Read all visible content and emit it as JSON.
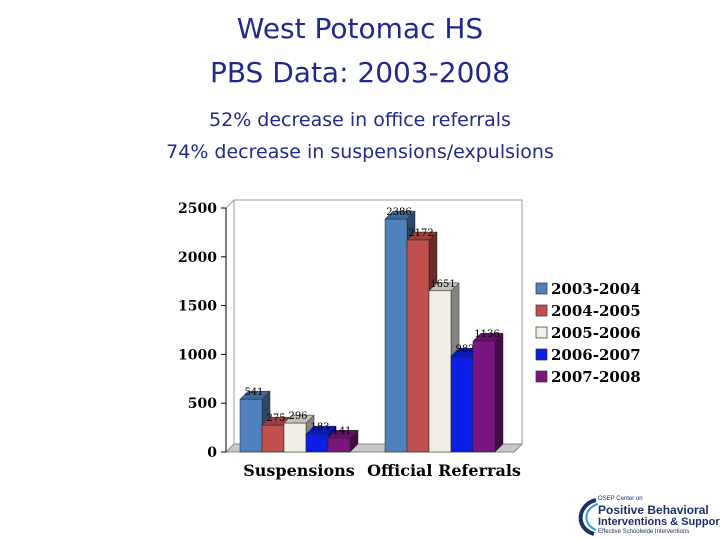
{
  "slide": {
    "title_line1": "West Potomac HS",
    "title_line2": "PBS Data:  2003-2008",
    "subtitle_line1": "52% decrease in office referrals",
    "subtitle_line2": "74% decrease in suspensions/expulsions"
  },
  "chart_data": {
    "type": "bar",
    "style": "3d-clustered-column",
    "title": "",
    "xlabel": "",
    "ylabel": "",
    "ylim": [
      0,
      2500
    ],
    "yticks": [
      0,
      500,
      1000,
      1500,
      2000,
      2500
    ],
    "categories": [
      "Suspensions",
      "Official Referrals"
    ],
    "series": [
      {
        "name": "2003-2004",
        "color": "#4f81bd",
        "values": [
          541,
          2386
        ]
      },
      {
        "name": "2004-2005",
        "color": "#c0504d",
        "values": [
          275,
          2172
        ]
      },
      {
        "name": "2005-2006",
        "color": "#f2f0e6",
        "values": [
          296,
          1651
        ]
      },
      {
        "name": "2006-2007",
        "color": "#0a1ee8",
        "values": [
          183,
          982
        ]
      },
      {
        "name": "2007-2008",
        "color": "#7b1680",
        "values": [
          141,
          1136
        ]
      }
    ],
    "grid": false,
    "legend_position": "right"
  },
  "logo": {
    "line1": "OSEP Center on",
    "line2": "Positive Behavioral",
    "line3": "Interventions & Supports",
    "line4": "Effective Schoolwide Interventions"
  }
}
